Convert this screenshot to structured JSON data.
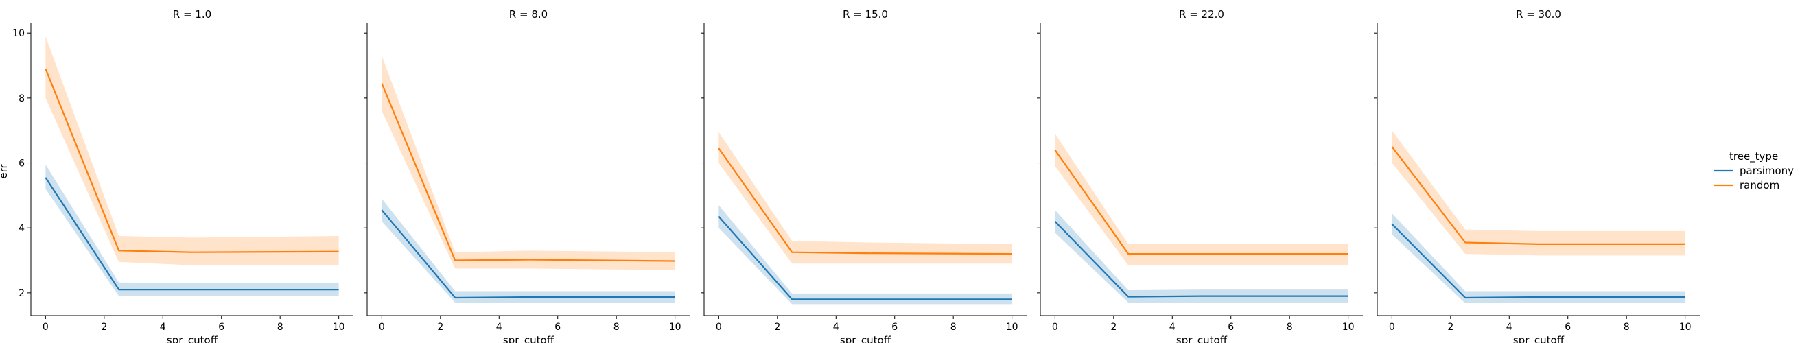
{
  "chart_data": {
    "type": "line",
    "ylabel": "err",
    "xlabel": "spr_cutoff",
    "xlim": [
      -0.5,
      10.5
    ],
    "ylim": [
      1.3,
      10.3
    ],
    "xticks": [
      0,
      2,
      4,
      6,
      8,
      10
    ],
    "yticks": [
      2,
      4,
      6,
      8,
      10
    ],
    "grid": false,
    "legend": {
      "title": "tree_type",
      "placement": "right",
      "entries": [
        "parsimony",
        "random"
      ]
    },
    "colors": {
      "parsimony": "#1f77b4",
      "random": "#ff7f0e"
    },
    "x": [
      0,
      2.5,
      5,
      10
    ],
    "panels": [
      {
        "title": "R = 1.0",
        "series": [
          {
            "name": "parsimony",
            "values": [
              5.55,
              2.1,
              2.1,
              2.1
            ],
            "lower": [
              5.2,
              1.9,
              1.9,
              1.9
            ],
            "upper": [
              5.95,
              2.32,
              2.3,
              2.3
            ]
          },
          {
            "name": "random",
            "values": [
              8.9,
              3.3,
              3.25,
              3.27
            ],
            "lower": [
              8.0,
              2.95,
              2.85,
              2.85
            ],
            "upper": [
              9.9,
              3.75,
              3.7,
              3.75
            ]
          }
        ]
      },
      {
        "title": "R = 8.0",
        "series": [
          {
            "name": "parsimony",
            "values": [
              4.55,
              1.85,
              1.87,
              1.87
            ],
            "lower": [
              4.2,
              1.7,
              1.7,
              1.7
            ],
            "upper": [
              4.9,
              2.05,
              2.05,
              2.05
            ]
          },
          {
            "name": "random",
            "values": [
              8.45,
              3.0,
              3.02,
              2.98
            ],
            "lower": [
              7.6,
              2.75,
              2.75,
              2.7
            ],
            "upper": [
              9.3,
              3.25,
              3.3,
              3.25
            ]
          }
        ]
      },
      {
        "title": "R = 15.0",
        "series": [
          {
            "name": "parsimony",
            "values": [
              4.35,
              1.8,
              1.8,
              1.8
            ],
            "lower": [
              4.0,
              1.65,
              1.65,
              1.65
            ],
            "upper": [
              4.7,
              1.98,
              1.98,
              1.98
            ]
          },
          {
            "name": "random",
            "values": [
              6.45,
              3.25,
              3.22,
              3.2
            ],
            "lower": [
              6.0,
              2.9,
              2.9,
              2.9
            ],
            "upper": [
              6.95,
              3.6,
              3.55,
              3.5
            ]
          }
        ]
      },
      {
        "title": "R = 22.0",
        "series": [
          {
            "name": "parsimony",
            "values": [
              4.2,
              1.88,
              1.9,
              1.9
            ],
            "lower": [
              3.85,
              1.7,
              1.7,
              1.7
            ],
            "upper": [
              4.55,
              2.08,
              2.1,
              2.1
            ]
          },
          {
            "name": "random",
            "values": [
              6.4,
              3.2,
              3.2,
              3.2
            ],
            "lower": [
              5.9,
              2.85,
              2.85,
              2.85
            ],
            "upper": [
              6.9,
              3.5,
              3.5,
              3.5
            ]
          }
        ]
      },
      {
        "title": "R = 30.0",
        "series": [
          {
            "name": "parsimony",
            "values": [
              4.12,
              1.85,
              1.87,
              1.87
            ],
            "lower": [
              3.8,
              1.68,
              1.7,
              1.7
            ],
            "upper": [
              4.45,
              2.05,
              2.05,
              2.05
            ]
          },
          {
            "name": "random",
            "values": [
              6.5,
              3.55,
              3.5,
              3.5
            ],
            "lower": [
              6.0,
              3.2,
              3.15,
              3.15
            ],
            "upper": [
              7.0,
              3.95,
              3.9,
              3.9
            ]
          }
        ]
      }
    ]
  }
}
